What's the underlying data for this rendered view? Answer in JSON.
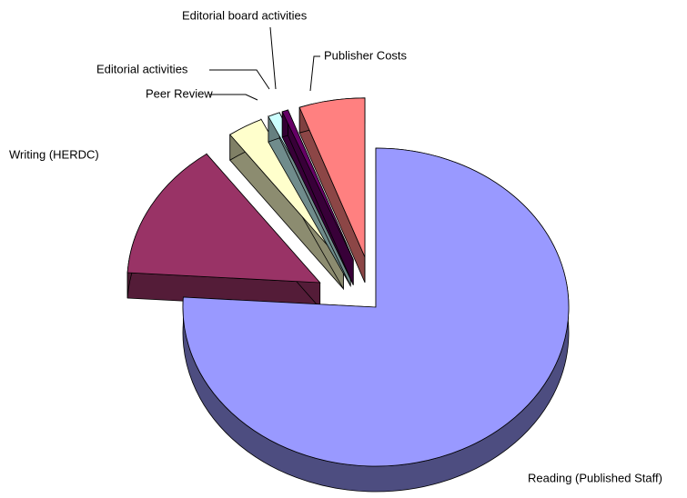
{
  "chart_data": {
    "type": "pie3d",
    "categories": [
      "Reading (Published Staff)",
      "Writing (HERDC)",
      "Peer Review",
      "Editorial  activities",
      "Editorial board activities",
      "Publisher  Costs"
    ],
    "values": [
      76,
      14,
      3,
      1,
      0.5,
      5.5
    ],
    "colors": [
      "#9999ff",
      "#993366",
      "#ffffcc",
      "#ccffff",
      "#660066",
      "#ff8080"
    ]
  }
}
